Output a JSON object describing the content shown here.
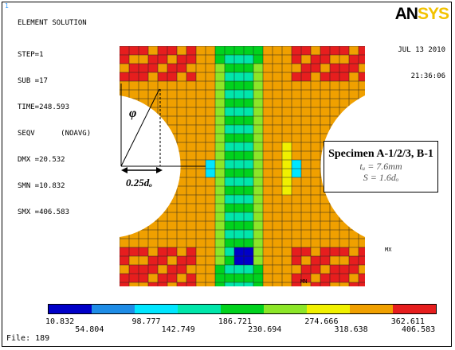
{
  "index_number": "1",
  "header": {
    "title": "ELEMENT SOLUTION",
    "lines": [
      "STEP=1",
      "SUB =17",
      "TIME=248.593",
      "SEQV      (NOAVG)",
      "DMX =20.532",
      "SMN =10.832",
      "SMX =406.583"
    ],
    "date": "JUL 13 2010",
    "time": "21:36:06"
  },
  "logo": {
    "part1": "AN",
    "part2": "SYS"
  },
  "specimen": {
    "title": "Specimen A-1/2/3, B-1",
    "tw": "tᵤ = 7.6mm",
    "s": "S = 1.6dₒ"
  },
  "annotations": {
    "phi": "φ",
    "dimension": "0.25dₒ",
    "min_label": "MN",
    "max_label": "MX"
  },
  "legend": {
    "colors": [
      "#0000c8",
      "#1e8ce6",
      "#00e6ff",
      "#00e6aa",
      "#00d21e",
      "#8ce628",
      "#f0f000",
      "#f0a000",
      "#e61e1e"
    ],
    "top_values": [
      "10.832",
      "98.777",
      "186.721",
      "274.666",
      "362.611"
    ],
    "bottom_values": [
      "54.804",
      "142.749",
      "230.694",
      "318.638",
      "406.583"
    ]
  },
  "footer": {
    "file": "File: 189"
  }
}
